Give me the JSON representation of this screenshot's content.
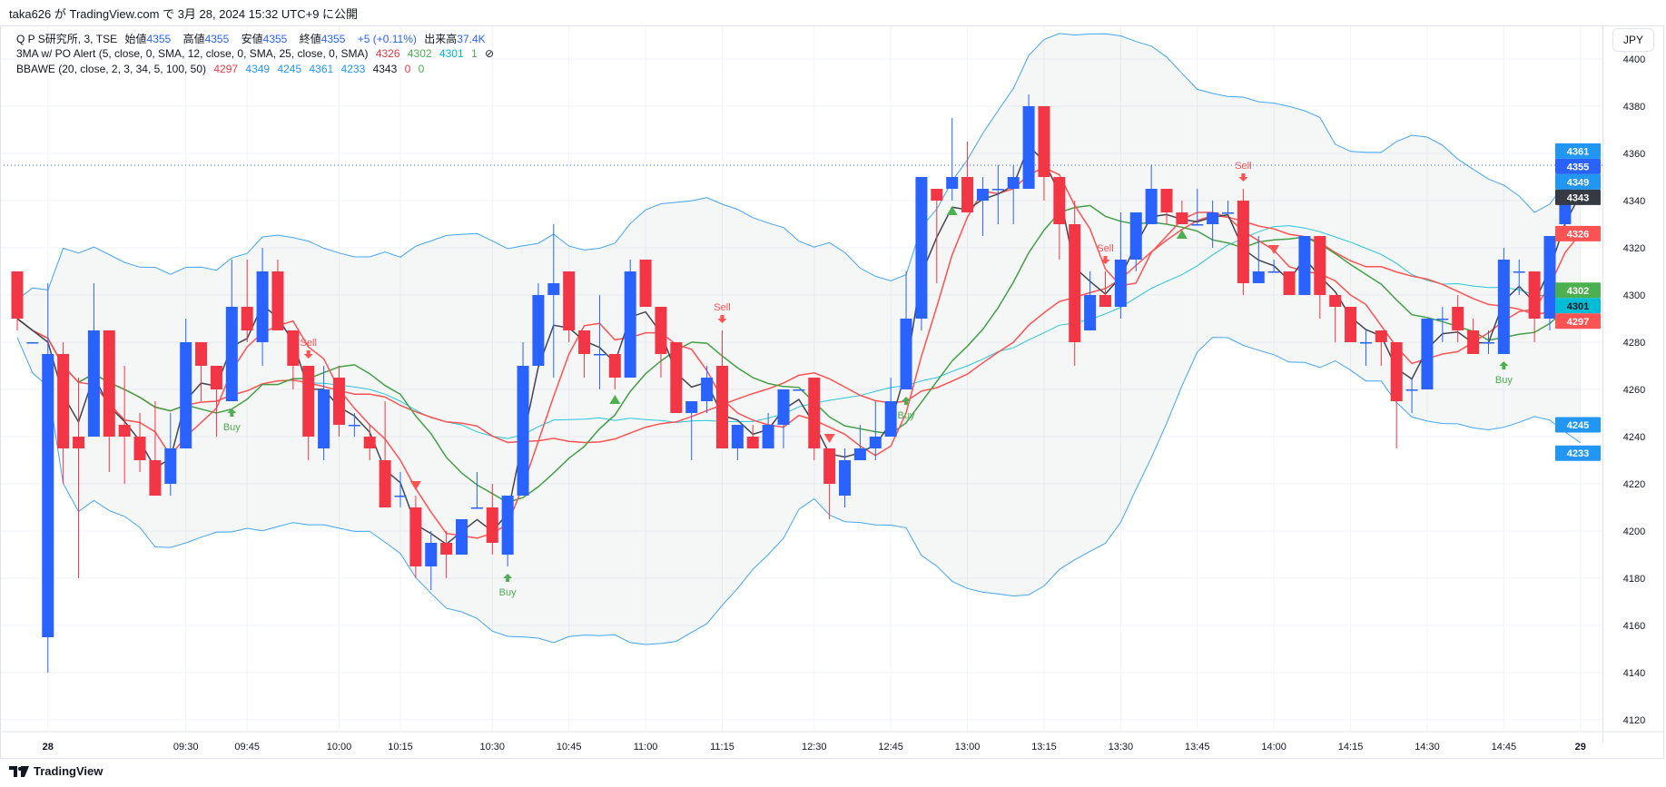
{
  "header": {
    "published": "taka626 が TradingView.com で 3月 28, 2024 15:32 UTC+9 に公開"
  },
  "legend": {
    "symbol": "Q P S研究所, 3, TSE",
    "open_label": "始値",
    "open": "4355",
    "high_label": "高値",
    "high": "4355",
    "low_label": "安値",
    "low": "4355",
    "close_label": "終値",
    "close": "4355",
    "change": "+5 (+0.11%)",
    "volume_label": "出来高",
    "volume": "37.4K",
    "ma_title": "3MA w/ PO Alert (5, close, 0, SMA, 12, close, 0, SMA, 25, close, 0, SMA)",
    "ma_values": [
      "4326",
      "4302",
      "4301",
      "1"
    ],
    "ma_hidden_icon": "⊘",
    "bb_title": "BBAWE (20, close, 2, 3, 34, 5, 100, 50)",
    "bb_values": [
      "4297",
      "4349",
      "4245",
      "4361",
      "4233",
      "4343",
      "0",
      "0"
    ]
  },
  "currency_button": "JPY",
  "footer": {
    "brand": "TradingView"
  },
  "colors": {
    "up": "#2962ff",
    "down": "#f23645",
    "sma5": "#ff5252",
    "sma12": "#43a047",
    "sma25": "#26c6da",
    "bb": "#42a5f5",
    "basis": "#ff5252",
    "fast": "#434651",
    "buy": "#4caf50",
    "sell": "#ff5252"
  },
  "chart_data": {
    "type": "candlestick",
    "ylim": [
      4115,
      4405
    ],
    "yticks": [
      4120,
      4140,
      4160,
      4180,
      4200,
      4220,
      4240,
      4260,
      4280,
      4300,
      4320,
      4340,
      4360,
      4380,
      4400
    ],
    "last_price": 4355,
    "ohlc": [
      [
        4310,
        4310,
        4285,
        4290
      ],
      [
        4280,
        4280,
        4280,
        4280
      ],
      [
        4155,
        4305,
        4140,
        4275
      ],
      [
        4275,
        4280,
        4220,
        4235
      ],
      [
        4240,
        4265,
        4180,
        4235
      ],
      [
        4240,
        4305,
        4240,
        4285
      ],
      [
        4285,
        4285,
        4225,
        4240
      ],
      [
        4245,
        4270,
        4220,
        4240
      ],
      [
        4240,
        4250,
        4225,
        4230
      ],
      [
        4230,
        4255,
        4215,
        4215
      ],
      [
        4220,
        4250,
        4215,
        4235
      ],
      [
        4235,
        4290,
        4235,
        4280
      ],
      [
        4280,
        4280,
        4255,
        4270
      ],
      [
        4270,
        4270,
        4240,
        4260
      ],
      [
        4255,
        4315,
        4255,
        4295
      ],
      [
        4295,
        4315,
        4280,
        4285
      ],
      [
        4280,
        4320,
        4270,
        4310
      ],
      [
        4310,
        4315,
        4285,
        4285
      ],
      [
        4285,
        4285,
        4260,
        4270
      ],
      [
        4270,
        4270,
        4230,
        4240
      ],
      [
        4235,
        4270,
        4230,
        4260
      ],
      [
        4265,
        4270,
        4240,
        4245
      ],
      [
        4245,
        4250,
        4240,
        4245
      ],
      [
        4240,
        4245,
        4230,
        4235
      ],
      [
        4230,
        4255,
        4210,
        4210
      ],
      [
        4215,
        4225,
        4210,
        4215
      ],
      [
        4210,
        4215,
        4180,
        4185
      ],
      [
        4185,
        4200,
        4175,
        4195
      ],
      [
        4195,
        4200,
        4180,
        4190
      ],
      [
        4190,
        4205,
        4190,
        4205
      ],
      [
        4210,
        4225,
        4210,
        4210
      ],
      [
        4210,
        4220,
        4190,
        4195
      ],
      [
        4190,
        4215,
        4185,
        4215
      ],
      [
        4215,
        4280,
        4215,
        4270
      ],
      [
        4270,
        4305,
        4270,
        4300
      ],
      [
        4300,
        4330,
        4265,
        4305
      ],
      [
        4310,
        4310,
        4280,
        4285
      ],
      [
        4285,
        4285,
        4265,
        4275
      ],
      [
        4275,
        4300,
        4260,
        4275
      ],
      [
        4275,
        4275,
        4260,
        4265
      ],
      [
        4265,
        4315,
        4265,
        4310
      ],
      [
        4315,
        4315,
        4295,
        4295
      ],
      [
        4295,
        4295,
        4265,
        4275
      ],
      [
        4280,
        4280,
        4250,
        4250
      ],
      [
        4250,
        4255,
        4230,
        4255
      ],
      [
        4255,
        4270,
        4250,
        4265
      ],
      [
        4270,
        4285,
        4235,
        4235
      ],
      [
        4235,
        4245,
        4230,
        4245
      ],
      [
        4240,
        4245,
        4235,
        4235
      ],
      [
        4235,
        4250,
        4235,
        4245
      ],
      [
        4245,
        4260,
        4235,
        4260
      ],
      [
        4260,
        4260,
        4260,
        4260
      ],
      [
        4265,
        4265,
        4230,
        4235
      ],
      [
        4235,
        4235,
        4205,
        4220
      ],
      [
        4215,
        4235,
        4210,
        4230
      ],
      [
        4230,
        4245,
        4230,
        4235
      ],
      [
        4235,
        4255,
        4230,
        4240
      ],
      [
        4240,
        4265,
        4240,
        4255
      ],
      [
        4260,
        4310,
        4260,
        4290
      ],
      [
        4290,
        4350,
        4285,
        4350
      ],
      [
        4345,
        4345,
        4305,
        4340
      ],
      [
        4345,
        4375,
        4340,
        4350
      ],
      [
        4350,
        4365,
        4335,
        4335
      ],
      [
        4340,
        4350,
        4325,
        4345
      ],
      [
        4345,
        4355,
        4330,
        4345
      ],
      [
        4345,
        4355,
        4330,
        4350
      ],
      [
        4345,
        4385,
        4345,
        4380
      ],
      [
        4380,
        4380,
        4340,
        4350
      ],
      [
        4350,
        4350,
        4315,
        4330
      ],
      [
        4330,
        4340,
        4270,
        4280
      ],
      [
        4285,
        4310,
        4285,
        4300
      ],
      [
        4300,
        4310,
        4295,
        4295
      ],
      [
        4295,
        4335,
        4290,
        4315
      ],
      [
        4315,
        4335,
        4310,
        4335
      ],
      [
        4330,
        4355,
        4330,
        4345
      ],
      [
        4345,
        4345,
        4330,
        4335
      ],
      [
        4335,
        4340,
        4330,
        4330
      ],
      [
        4330,
        4345,
        4330,
        4330
      ],
      [
        4330,
        4340,
        4320,
        4335
      ],
      [
        4335,
        4340,
        4335,
        4335
      ],
      [
        4340,
        4345,
        4300,
        4305
      ],
      [
        4305,
        4325,
        4305,
        4310
      ],
      [
        4310,
        4315,
        4310,
        4310
      ],
      [
        4310,
        4310,
        4300,
        4300
      ],
      [
        4300,
        4325,
        4300,
        4325
      ],
      [
        4325,
        4325,
        4290,
        4300
      ],
      [
        4300,
        4300,
        4280,
        4295
      ],
      [
        4295,
        4295,
        4280,
        4280
      ],
      [
        4280,
        4285,
        4270,
        4280
      ],
      [
        4285,
        4285,
        4270,
        4280
      ],
      [
        4280,
        4280,
        4235,
        4255
      ],
      [
        4260,
        4265,
        4250,
        4260
      ],
      [
        4260,
        4290,
        4260,
        4290
      ],
      [
        4290,
        4295,
        4280,
        4290
      ],
      [
        4295,
        4300,
        4280,
        4285
      ],
      [
        4285,
        4290,
        4275,
        4275
      ],
      [
        4280,
        4285,
        4275,
        4280
      ],
      [
        4275,
        4320,
        4275,
        4315
      ],
      [
        4310,
        4315,
        4300,
        4310
      ],
      [
        4310,
        4310,
        4280,
        4290
      ],
      [
        4290,
        4325,
        4285,
        4325
      ],
      [
        4330,
        4360,
        4325,
        4350
      ],
      [
        4355,
        4355,
        4355,
        4355
      ]
    ],
    "signals": [
      {
        "bar": 14,
        "type": "buy",
        "label": "Buy"
      },
      {
        "bar": 32,
        "type": "buy",
        "label": "Buy"
      },
      {
        "bar": 58,
        "type": "buy",
        "label": "Buy"
      },
      {
        "bar": 97,
        "type": "buy",
        "label": "Buy"
      },
      {
        "bar": 19,
        "type": "sell",
        "label": "Sell"
      },
      {
        "bar": 46,
        "type": "sell",
        "label": "Sell"
      },
      {
        "bar": 71,
        "type": "sell",
        "label": "Sell"
      },
      {
        "bar": 80,
        "type": "sell",
        "label": "Sell"
      }
    ],
    "triangles": [
      {
        "bar": 39,
        "dir": "up"
      },
      {
        "bar": 61,
        "dir": "up"
      },
      {
        "bar": 76,
        "dir": "up"
      },
      {
        "bar": 102,
        "dir": "up"
      },
      {
        "bar": 26,
        "dir": "down"
      },
      {
        "bar": 53,
        "dir": "down"
      },
      {
        "bar": 82,
        "dir": "down"
      }
    ],
    "xticks": [
      {
        "bar": 2,
        "label": "28"
      },
      {
        "bar": 11,
        "label": "09:30"
      },
      {
        "bar": 15,
        "label": "09:45"
      },
      {
        "bar": 21,
        "label": "10:00"
      },
      {
        "bar": 25,
        "label": "10:15"
      },
      {
        "bar": 31,
        "label": "10:30"
      },
      {
        "bar": 36,
        "label": "10:45"
      },
      {
        "bar": 41,
        "label": "11:00"
      },
      {
        "bar": 46,
        "label": "11:15"
      },
      {
        "bar": 52,
        "label": "12:30"
      },
      {
        "bar": 57,
        "label": "12:45"
      },
      {
        "bar": 62,
        "label": "13:00"
      },
      {
        "bar": 67,
        "label": "13:15"
      },
      {
        "bar": 72,
        "label": "13:30"
      },
      {
        "bar": 77,
        "label": "13:45"
      },
      {
        "bar": 82,
        "label": "14:00"
      },
      {
        "bar": 87,
        "label": "14:15"
      },
      {
        "bar": 92,
        "label": "14:30"
      },
      {
        "bar": 97,
        "label": "14:45"
      },
      {
        "bar": 102,
        "label": "29"
      }
    ],
    "price_tags": [
      {
        "value": 4361,
        "label": "4361",
        "bg": "#2196f3",
        "fg": "#ffffff"
      },
      {
        "value": 4355,
        "label": "4355",
        "bg": "#2962ff",
        "fg": "#ffffff"
      },
      {
        "value": 4349,
        "label": "4349",
        "bg": "#2196f3",
        "fg": "#ffffff"
      },
      {
        "value": 4343,
        "label": "4343",
        "bg": "#363a45",
        "fg": "#ffffff"
      },
      {
        "value": 4326,
        "label": "4326",
        "bg": "#ff5252",
        "fg": "#ffffff"
      },
      {
        "value": 4302,
        "label": "4302",
        "bg": "#4caf50",
        "fg": "#ffffff"
      },
      {
        "value": 4301,
        "label": "4301",
        "bg": "#00bcd4",
        "fg": "#131722"
      },
      {
        "value": 4297,
        "label": "4297",
        "bg": "#ff5252",
        "fg": "#ffffff"
      },
      {
        "value": 4245,
        "label": "4245",
        "bg": "#2196f3",
        "fg": "#ffffff"
      },
      {
        "value": 4233,
        "label": "4233",
        "bg": "#2196f3",
        "fg": "#ffffff"
      }
    ]
  }
}
